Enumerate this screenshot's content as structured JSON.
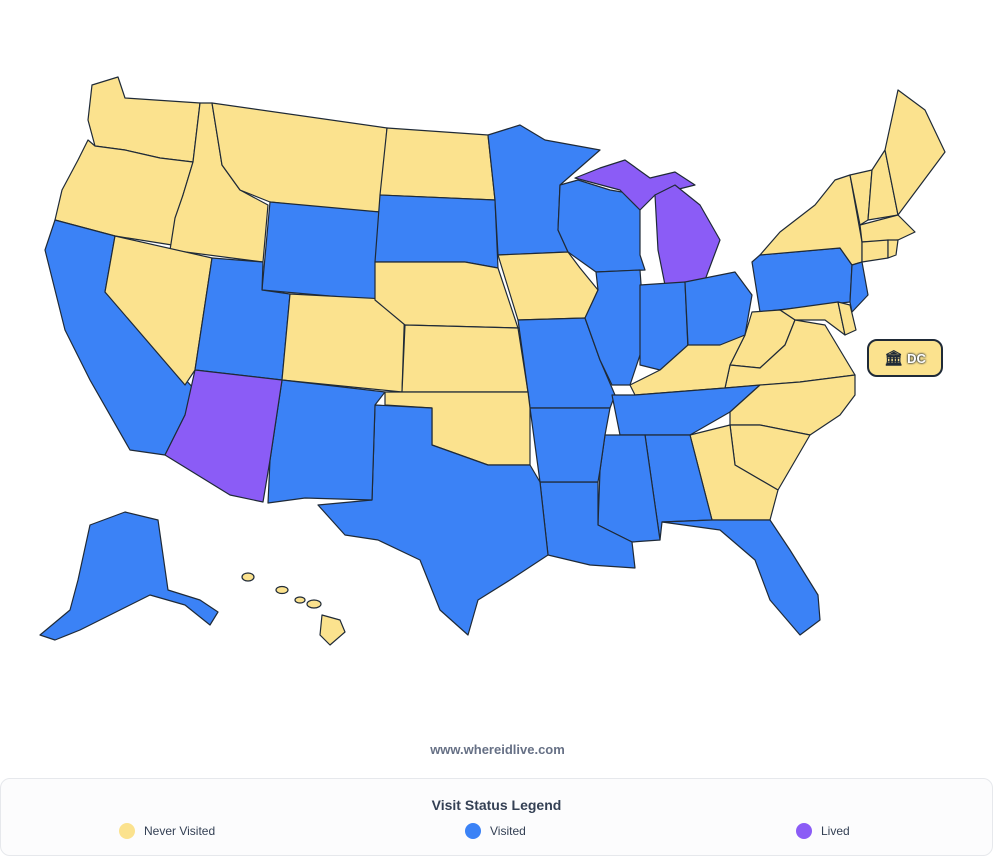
{
  "colors": {
    "never_visited": "#fbe28e",
    "visited": "#3b82f6",
    "lived": "#8b5cf6",
    "border": "#1f2a37"
  },
  "state_status": {
    "WA": "never_visited",
    "OR": "never_visited",
    "ID": "never_visited",
    "MT": "never_visited",
    "ND": "never_visited",
    "NV": "never_visited",
    "CO": "never_visited",
    "NE": "never_visited",
    "KS": "never_visited",
    "OK": "never_visited",
    "IA": "never_visited",
    "KY": "never_visited",
    "WV": "never_visited",
    "VA": "never_visited",
    "NC": "never_visited",
    "SC": "never_visited",
    "GA": "never_visited",
    "NY": "never_visited",
    "VT": "never_visited",
    "NH": "never_visited",
    "ME": "never_visited",
    "MA": "never_visited",
    "CT": "never_visited",
    "RI": "never_visited",
    "MD": "never_visited",
    "DE": "never_visited",
    "HI": "never_visited",
    "CA": "visited",
    "UT": "visited",
    "WY": "visited",
    "SD": "visited",
    "MN": "visited",
    "WI": "visited",
    "IL": "visited",
    "IN": "visited",
    "OH": "visited",
    "PA": "visited",
    "NJ": "visited",
    "MO": "visited",
    "AR": "visited",
    "LA": "visited",
    "MS": "visited",
    "AL": "visited",
    "TN": "visited",
    "FL": "visited",
    "TX": "visited",
    "NM": "visited",
    "AK": "visited",
    "AZ": "lived",
    "MI": "lived"
  },
  "dc": {
    "label": "DC",
    "icon": "bank-icon",
    "status": "never_visited"
  },
  "site_url": "www.whereidlive.com",
  "legend": {
    "title": "Visit Status Legend",
    "items": [
      {
        "label": "Never Visited",
        "status": "never_visited"
      },
      {
        "label": "Visited",
        "status": "visited"
      },
      {
        "label": "Lived",
        "status": "lived"
      }
    ]
  }
}
